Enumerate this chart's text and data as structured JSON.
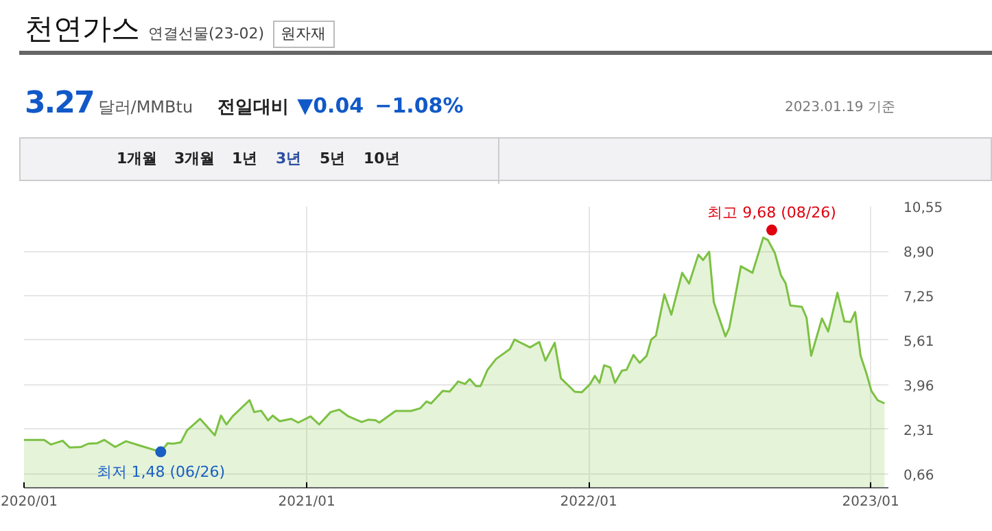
{
  "chart_data": {
    "type": "area",
    "title": "천연가스",
    "subtitle": "연결선물(23-02)",
    "annotations": [
      {
        "text": "최고 9,68 (08/26)",
        "x": "2022-08-26",
        "y": 9.68
      },
      {
        "text": "최저 1,48 (06/26)",
        "x": "2020-06-26",
        "y": 1.48
      },
      "원자재",
      "3.27",
      "달러/MMBtu",
      "전일대비",
      "▼0.04",
      "−1.08%",
      "2023.01.19 기준",
      "1개월",
      "3개월",
      "1년",
      "3년",
      "5년",
      "10년"
    ],
    "x": [
      "2020-01-01",
      "2020-01-27",
      "2020-02-05",
      "2020-02-20",
      "2020-02-29",
      "2020-03-15",
      "2020-03-24",
      "2020-04-05",
      "2020-04-14",
      "2020-04-28",
      "2020-05-12",
      "2020-05-30",
      "2020-06-26",
      "2020-07-05",
      "2020-07-12",
      "2020-07-22",
      "2020-07-30",
      "2020-08-16",
      "2020-09-04",
      "2020-09-12",
      "2020-09-19",
      "2020-09-27",
      "2020-10-19",
      "2020-10-25",
      "2020-11-03",
      "2020-11-12",
      "2020-11-18",
      "2020-11-27",
      "2020-12-12",
      "2020-12-21",
      "2021-01-06",
      "2021-01-17",
      "2021-02-01",
      "2021-02-12",
      "2021-02-24",
      "2021-03-13",
      "2021-03-22",
      "2021-03-31",
      "2021-04-05",
      "2021-04-26",
      "2021-05-16",
      "2021-05-28",
      "2021-06-05",
      "2021-06-11",
      "2021-06-26",
      "2021-07-05",
      "2021-07-12",
      "2021-07-16",
      "2021-07-25",
      "2021-07-31",
      "2021-08-08",
      "2021-08-14",
      "2021-08-23",
      "2021-09-03",
      "2021-09-21",
      "2021-09-27",
      "2021-10-17",
      "2021-10-29",
      "2021-11-06",
      "2021-11-18",
      "2021-11-26",
      "2021-12-14",
      "2021-12-23",
      "2022-01-03",
      "2022-01-09",
      "2022-01-15",
      "2022-01-21",
      "2022-01-29",
      "2022-02-04",
      "2022-02-13",
      "2022-02-19",
      "2022-02-28",
      "2022-03-08",
      "2022-03-17",
      "2022-03-23",
      "2022-03-29",
      "2022-04-09",
      "2022-04-18",
      "2022-05-02",
      "2022-05-11",
      "2022-05-23",
      "2022-05-29",
      "2022-06-06",
      "2022-06-12",
      "2022-06-27",
      "2022-07-02",
      "2022-07-17",
      "2022-08-01",
      "2022-08-15",
      "2022-08-21",
      "2022-08-30",
      "2022-09-07",
      "2022-09-13",
      "2022-09-19",
      "2022-10-04",
      "2022-10-10",
      "2022-10-16",
      "2022-10-30",
      "2022-11-07",
      "2022-11-19",
      "2022-11-28",
      "2022-12-06",
      "2022-12-12",
      "2022-12-19",
      "2022-12-27",
      "2023-01-02",
      "2023-01-10",
      "2023-01-19"
    ],
    "series": [
      {
        "color": "#7cc142",
        "values": [
          1.92,
          1.92,
          1.75,
          1.89,
          1.64,
          1.66,
          1.78,
          1.8,
          1.92,
          1.66,
          1.87,
          1.71,
          1.48,
          1.8,
          1.78,
          1.83,
          2.27,
          2.7,
          2.09,
          2.82,
          2.49,
          2.79,
          3.39,
          2.95,
          3.0,
          2.64,
          2.82,
          2.61,
          2.7,
          2.56,
          2.79,
          2.49,
          2.95,
          3.04,
          2.79,
          2.58,
          2.67,
          2.65,
          2.56,
          2.99,
          2.99,
          3.09,
          3.34,
          3.27,
          3.73,
          3.71,
          3.94,
          4.08,
          3.99,
          4.17,
          3.91,
          3.91,
          4.51,
          4.91,
          5.28,
          5.63,
          5.34,
          5.54,
          4.85,
          5.51,
          4.2,
          3.7,
          3.68,
          3.99,
          4.29,
          4.03,
          4.68,
          4.6,
          4.03,
          4.48,
          4.51,
          5.06,
          4.77,
          5.03,
          5.63,
          5.77,
          7.3,
          6.55,
          8.1,
          7.7,
          8.77,
          8.57,
          8.88,
          7.01,
          5.75,
          6.06,
          8.34,
          8.1,
          9.4,
          9.31,
          8.83,
          8.0,
          7.71,
          6.89,
          6.84,
          6.44,
          5.03,
          6.41,
          5.93,
          7.36,
          6.3,
          6.28,
          6.65,
          5.03,
          4.34,
          3.73,
          3.39,
          3.27
        ]
      }
    ],
    "xlim": [
      "2020-01-01",
      "2023-01-24"
    ],
    "ylim": [
      0.15,
      10.55
    ],
    "xticks": [
      {
        "value": "2020-01-01",
        "label": "2020/01"
      },
      {
        "value": "2021-01-01",
        "label": "2021/01"
      },
      {
        "value": "2022-01-01",
        "label": "2022/01"
      },
      {
        "value": "2023-01-01",
        "label": "2023/01"
      }
    ],
    "yticks": [
      {
        "value": 0.66,
        "label": "0,66"
      },
      {
        "value": 2.31,
        "label": "2,31"
      },
      {
        "value": 3.96,
        "label": "3,96"
      },
      {
        "value": 5.61,
        "label": "5,61"
      },
      {
        "value": 7.25,
        "label": "7,25"
      },
      {
        "value": 8.9,
        "label": "8,90"
      },
      {
        "value": 10.55,
        "label": "10,55"
      }
    ],
    "grid": true
  }
}
